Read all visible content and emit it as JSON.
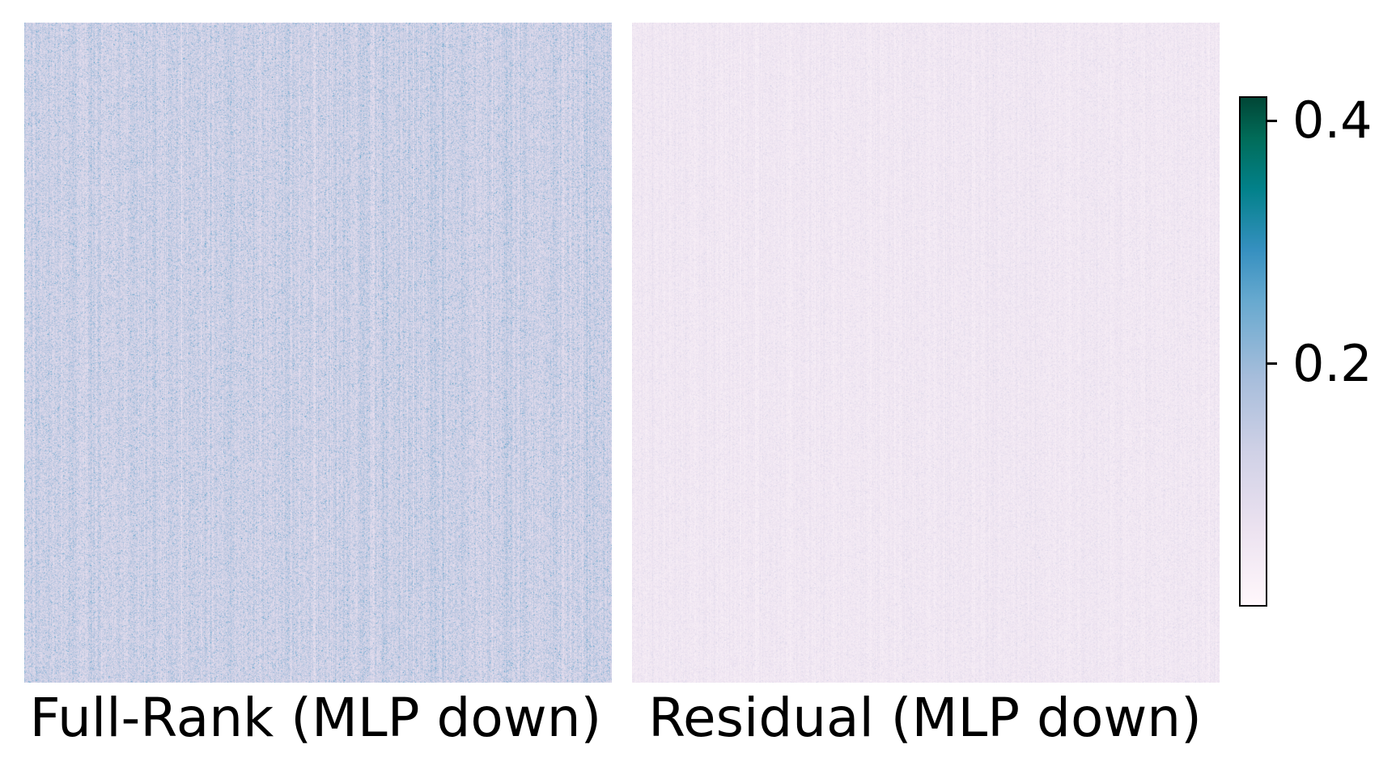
{
  "chart_data": [
    {
      "type": "heatmap",
      "title": "Full-Rank (MLP down)",
      "value_distribution": {
        "mean": 0.11,
        "std": 0.045,
        "min": 0.0,
        "max": 0.42
      },
      "clim": [
        0.0,
        0.42
      ],
      "colormap": "PuBuGn",
      "axes_visible": false
    },
    {
      "type": "heatmap",
      "title": "Residual (MLP down)",
      "value_distribution": {
        "mean": 0.04,
        "std": 0.02,
        "min": 0.0,
        "max": 0.42
      },
      "clim": [
        0.0,
        0.42
      ],
      "colormap": "PuBuGn",
      "axes_visible": false
    }
  ],
  "colorbar": {
    "range": [
      0.0,
      0.42
    ],
    "ticks": [
      0.2,
      0.4
    ],
    "tick_labels": [
      "0.2",
      "0.4"
    ],
    "colors": [
      "#fff7fb",
      "#ece2f0",
      "#d0d1e6",
      "#a6bddb",
      "#67a9cf",
      "#3690c0",
      "#02818a",
      "#016c59",
      "#014636"
    ]
  }
}
